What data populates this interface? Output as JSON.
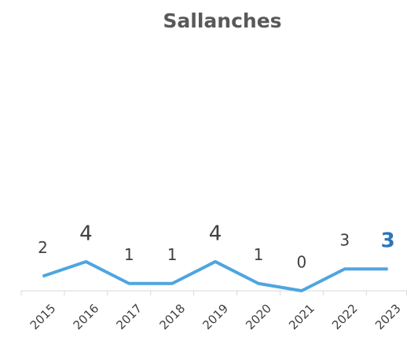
{
  "chart_data": {
    "type": "line",
    "title": "Sallanches",
    "categories": [
      "2015",
      "2016",
      "2017",
      "2018",
      "2019",
      "2020",
      "2021",
      "2022",
      "2023"
    ],
    "values": [
      2,
      4,
      1,
      1,
      4,
      1,
      0,
      3,
      3
    ],
    "color": "#4ea5e0",
    "ylim": [
      0,
      35
    ]
  }
}
